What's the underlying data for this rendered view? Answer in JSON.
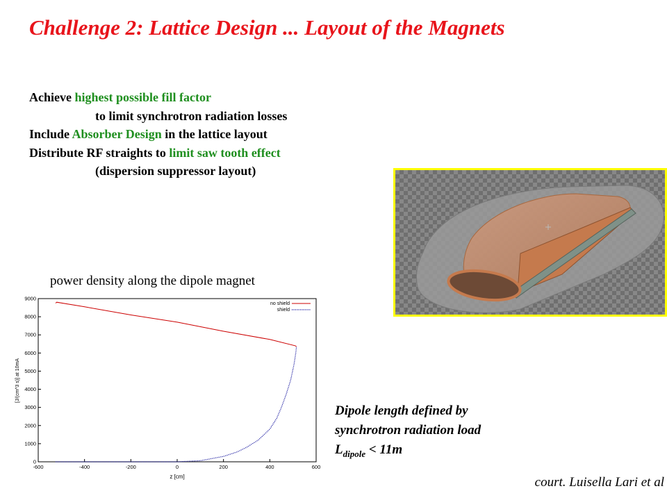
{
  "slide": {
    "title": "Challenge 2:  Lattice Design ... Layout of the Magnets",
    "bullets": [
      {
        "indent": false,
        "parts": [
          {
            "text": "Achieve ",
            "hl": false
          },
          {
            "text": "highest possible fill factor",
            "hl": true
          }
        ]
      },
      {
        "indent": true,
        "parts": [
          {
            "text": "to limit synchrotron radiation losses",
            "hl": false
          }
        ]
      },
      {
        "indent": false,
        "parts": [
          {
            "text": "Include ",
            "hl": false
          },
          {
            "text": "Absorber Design",
            "hl": true
          },
          {
            "text": " in the lattice layout",
            "hl": false
          }
        ]
      },
      {
        "indent": false,
        "parts": [
          {
            "text": "Distribute RF straights to ",
            "hl": false
          },
          {
            "text": "limit saw tooth effect",
            "hl": true
          }
        ]
      },
      {
        "indent": true,
        "parts": [
          {
            "text": "(dispersion suppressor layout)",
            "hl": false
          }
        ]
      }
    ],
    "plot_caption": "power density along the dipole magnet",
    "note": {
      "line1": "Dipole length defined by",
      "line2": "synchrotron radiation load",
      "l_letter": "L",
      "l_subscript": "dipole",
      "l_rest": " < 11m"
    },
    "credit": "court. Luisella Lari et al",
    "colors": {
      "title": "#e8141b",
      "highlight": "#1f8f1f",
      "frame": "#ffff00",
      "no_shield": "#cc0000",
      "shield": "#1a1aa0"
    }
  },
  "chart_data": {
    "type": "line",
    "title": "",
    "xlabel": "z [cm]",
    "ylabel": "[J/(cm^3 s)] at 10mA",
    "xlim": [
      -600,
      600
    ],
    "ylim": [
      0,
      9000
    ],
    "xticks": [
      -600,
      -400,
      -200,
      0,
      200,
      400,
      600
    ],
    "yticks": [
      0,
      1000,
      2000,
      3000,
      4000,
      5000,
      6000,
      7000,
      8000,
      9000
    ],
    "grid": false,
    "legend_position": "top-right",
    "series": [
      {
        "name": "no shield",
        "style": "solid",
        "color": "#cc0000",
        "points": [
          [
            -525,
            8750
          ],
          [
            -520,
            8800
          ],
          [
            -400,
            8550
          ],
          [
            -200,
            8100
          ],
          [
            0,
            7700
          ],
          [
            200,
            7200
          ],
          [
            400,
            6750
          ],
          [
            510,
            6400
          ],
          [
            515,
            6350
          ]
        ]
      },
      {
        "name": "shield",
        "style": "dotted",
        "color": "#1a1aa0",
        "points": [
          [
            -525,
            0
          ],
          [
            -200,
            0
          ],
          [
            0,
            0
          ],
          [
            100,
            60
          ],
          [
            200,
            300
          ],
          [
            260,
            550
          ],
          [
            300,
            800
          ],
          [
            350,
            1200
          ],
          [
            400,
            1800
          ],
          [
            430,
            2400
          ],
          [
            450,
            3000
          ],
          [
            470,
            3700
          ],
          [
            490,
            4500
          ],
          [
            505,
            5400
          ],
          [
            512,
            6000
          ],
          [
            515,
            6350
          ]
        ]
      }
    ]
  }
}
